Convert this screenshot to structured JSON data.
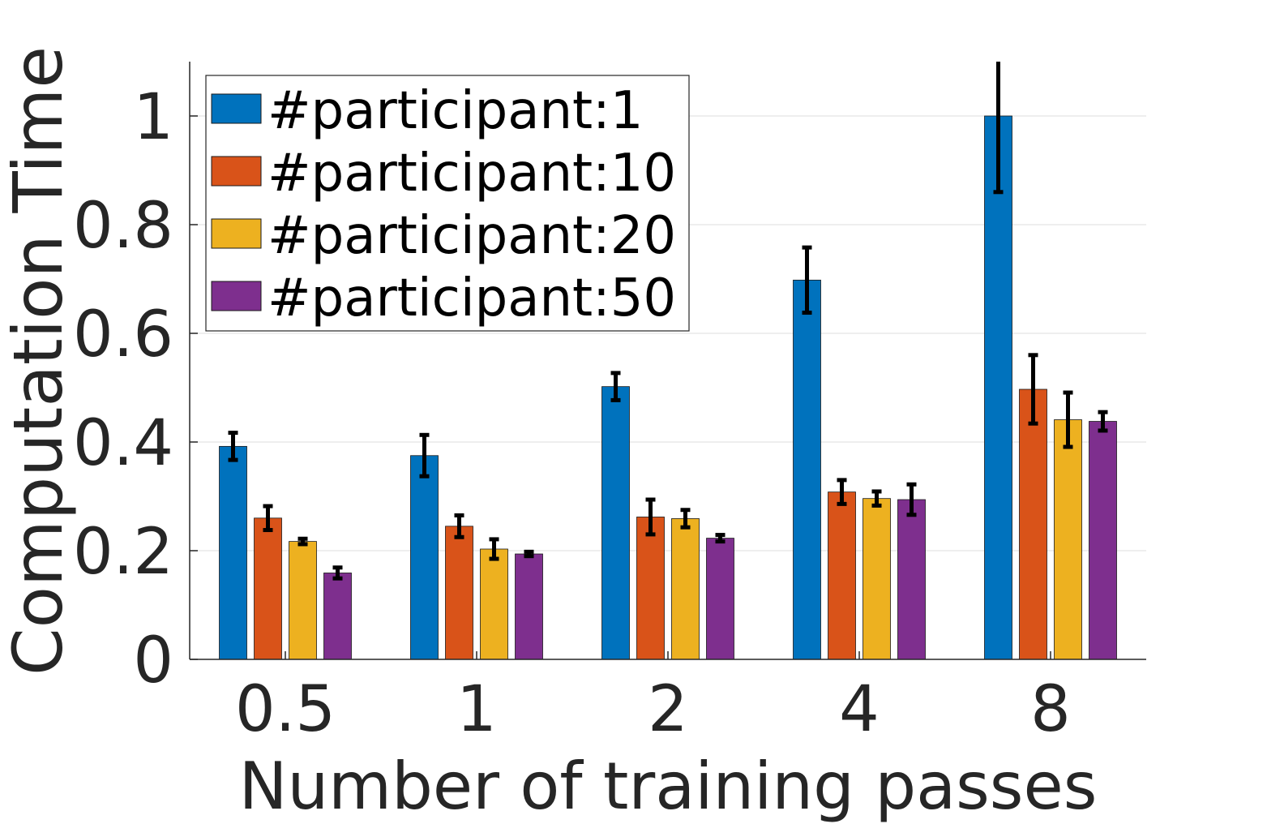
{
  "chart_data": {
    "type": "bar",
    "title": "",
    "xlabel": "Number of training passes",
    "ylabel": "Computation Time",
    "categories": [
      "0.5",
      "1",
      "2",
      "4",
      "8"
    ],
    "ylim": [
      0,
      1.1
    ],
    "yticks": [
      0,
      0.2,
      0.4,
      0.6,
      0.8,
      1
    ],
    "ytick_labels": [
      "0",
      "0.2",
      "0.4",
      "0.6",
      "0.8",
      "1"
    ],
    "grid": "horizontal",
    "legend_position": "top-left",
    "series": [
      {
        "name": "#participant:1",
        "color": "#0072BD",
        "values": [
          0.392,
          0.375,
          0.502,
          0.698,
          1.0
        ],
        "errors": [
          0.025,
          0.038,
          0.025,
          0.06,
          0.14
        ]
      },
      {
        "name": "#participant:10",
        "color": "#D95319",
        "values": [
          0.26,
          0.245,
          0.262,
          0.308,
          0.497
        ],
        "errors": [
          0.022,
          0.02,
          0.032,
          0.022,
          0.063
        ]
      },
      {
        "name": "#participant:20",
        "color": "#EDB120",
        "values": [
          0.217,
          0.203,
          0.259,
          0.296,
          0.441
        ],
        "errors": [
          0.005,
          0.018,
          0.016,
          0.013,
          0.05
        ]
      },
      {
        "name": "#participant:50",
        "color": "#7E2F8E",
        "values": [
          0.159,
          0.194,
          0.223,
          0.294,
          0.438
        ],
        "errors": [
          0.01,
          0.004,
          0.006,
          0.028,
          0.017
        ]
      }
    ]
  }
}
